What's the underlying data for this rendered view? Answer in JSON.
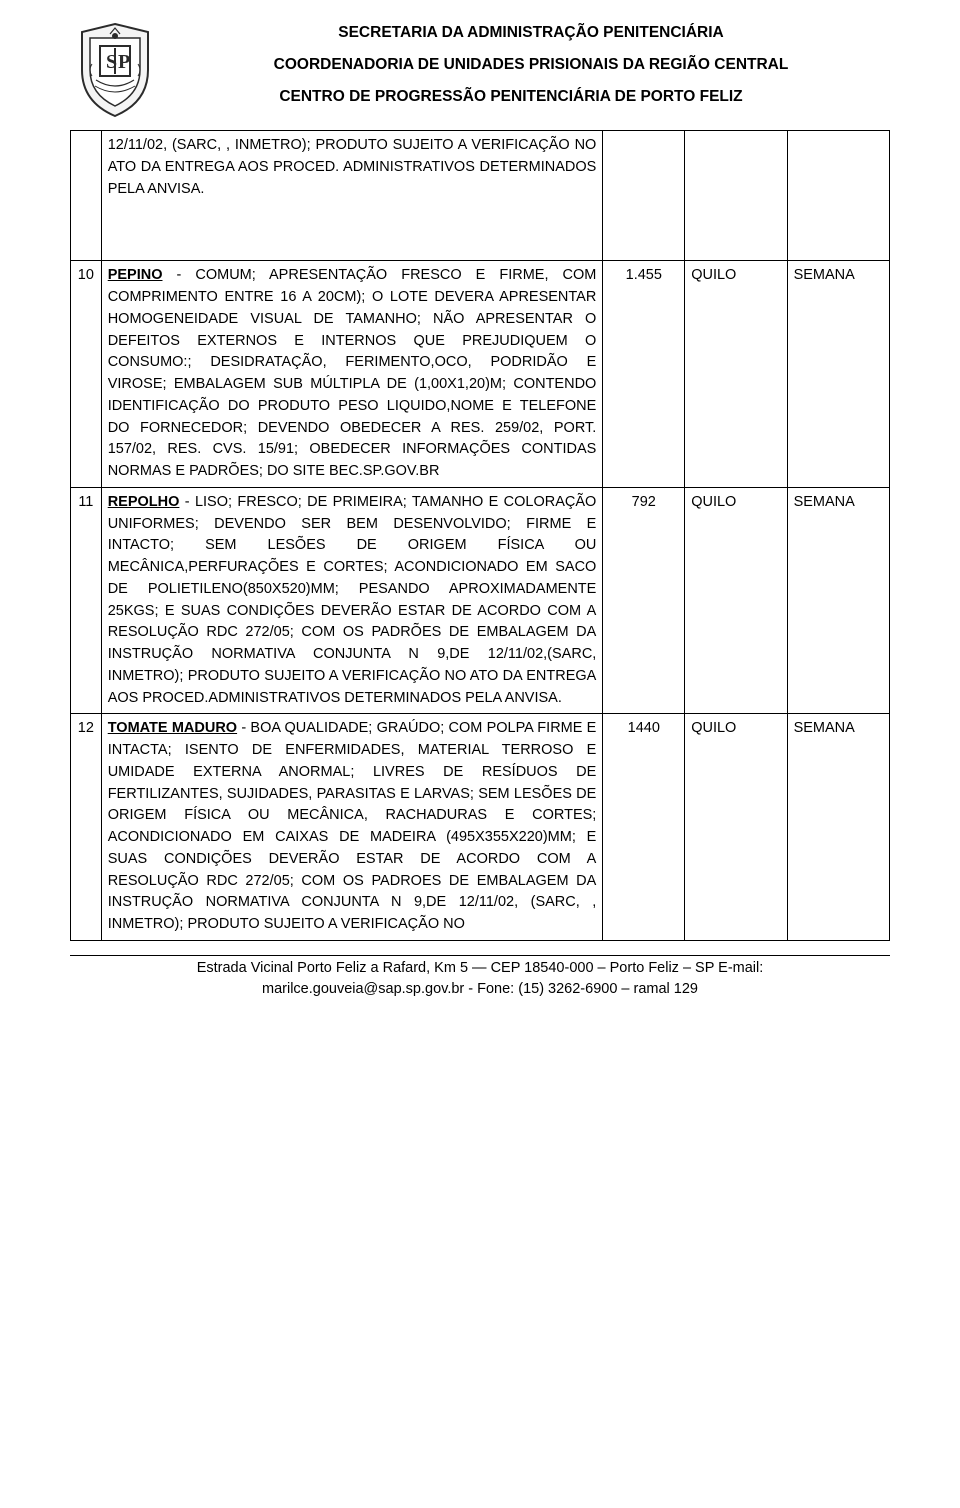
{
  "header": {
    "line1": "SECRETARIA DA ADMINISTRAÇÃO PENITENCIÁRIA",
    "line2": "COORDENADORIA DE UNIDADES PRISIONAIS DA REGIÃO CENTRAL",
    "line3": "CENTRO DE PROGRESSÃO PENITENCIÁRIA DE PORTO FELIZ"
  },
  "rows": [
    {
      "idx": "",
      "name": "",
      "desc_full": "12/11/02, (SARC, , INMETRO); PRODUTO SUJEITO A VERIFICAÇÃO NO ATO DA ENTREGA AOS PROCED. ADMINISTRATIVOS DETERMINADOS PELA ANVISA.",
      "qty": "",
      "unit": "",
      "freq": ""
    },
    {
      "idx": "10",
      "name": "PEPINO",
      "desc_rest": "- COMUM; APRESENTAÇÃO FRESCO E FIRME, COM COMPRIMENTO ENTRE 16 A 20CM); O LOTE DEVERA APRESENTAR HOMOGENEIDADE VISUAL DE TAMANHO; NÃO APRESENTAR O DEFEITOS EXTERNOS E INTERNOS QUE PREJUDIQUEM O CONSUMO:; DESIDRATAÇÃO, FERIMENTO,OCO, PODRIDÃO E VIROSE; EMBALAGEM SUB MÚLTIPLA DE (1,00X1,20)M; CONTENDO IDENTIFICAÇÃO DO PRODUTO PESO LIQUIDO,NOME E TELEFONE DO FORNECEDOR; DEVENDO OBEDECER A RES. 259/02, PORT. 157/02, RES. CVS. 15/91; OBEDECER INFORMAÇÕES CONTIDAS NORMAS E PADRÕES; DO SITE BEC.SP.GOV.BR",
      "qty": "1.455",
      "unit": "QUILO",
      "freq": "SEMANA"
    },
    {
      "idx": "11",
      "name": "REPOLHO",
      "desc_rest": "- LISO; FRESCO; DE PRIMEIRA; TAMANHO E COLORAÇÃO UNIFORMES; DEVENDO SER BEM DESENVOLVIDO; FIRME E INTACTO; SEM LESÕES DE ORIGEM FÍSICA OU MECÂNICA,PERFURAÇÕES E CORTES; ACONDICIONADO EM SACO DE POLIETILENO(850X520)MM; PESANDO APROXIMADAMENTE 25KGS; E SUAS CONDIÇÕES DEVERÃO ESTAR DE ACORDO COM A RESOLUÇÃO RDC 272/05; COM OS PADRÕES DE EMBALAGEM DA INSTRUÇÃO NORMATIVA CONJUNTA N 9,DE 12/11/02,(SARC, INMETRO); PRODUTO SUJEITO A VERIFICAÇÃO NO ATO DA ENTREGA AOS PROCED.ADMINISTRATIVOS DETERMINADOS PELA ANVISA.",
      "qty": "792",
      "unit": "QUILO",
      "freq": "SEMANA"
    },
    {
      "idx": "12",
      "name": "TOMATE MADURO",
      "desc_rest": "- BOA QUALIDADE; GRAÚDO; COM POLPA FIRME E INTACTA; ISENTO DE ENFERMIDADES, MATERIAL TERROSO E UMIDADE EXTERNA ANORMAL; LIVRES DE RESÍDUOS DE FERTILIZANTES, SUJIDADES, PARASITAS E LARVAS; SEM LESÕES DE ORIGEM FÍSICA OU MECÂNICA, RACHADURAS E CORTES; ACONDICIONADO EM CAIXAS DE MADEIRA (495X355X220)MM; E SUAS CONDIÇÕES DEVERÃO ESTAR DE ACORDO COM A RESOLUÇÃO RDC 272/05; COM OS PADROES DE EMBALAGEM DA INSTRUÇÃO NORMATIVA CONJUNTA N 9,DE 12/11/02, (SARC, , INMETRO); PRODUTO SUJEITO A VERIFICAÇÃO NO",
      "qty": "1440",
      "unit": "QUILO",
      "freq": "SEMANA"
    }
  ],
  "footer": {
    "line1": "Estrada Vicinal Porto Feliz a Rafard, Km 5 — CEP 18540-000 – Porto Feliz – SP E-mail:",
    "line2": "marilce.gouveia@sap.sp.gov.br - Fone: (15) 3262-6900 – ramal 129"
  }
}
